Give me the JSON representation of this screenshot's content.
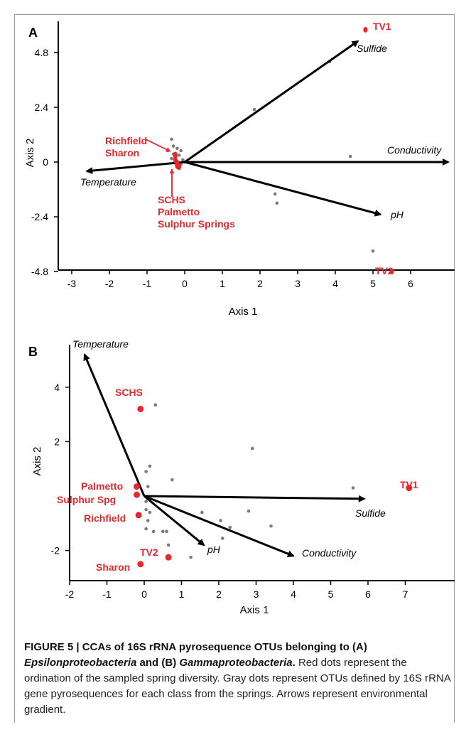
{
  "chart_data": [
    {
      "panel_label": "A",
      "type": "scatter",
      "xlabel": "Axis 1",
      "ylabel": "Axis 2",
      "xticks": [
        "-3",
        "-2",
        "-1",
        "0",
        "1",
        "2",
        "3",
        "4",
        "5",
        "6"
      ],
      "yticks": [
        "4.8",
        "2.4",
        "0",
        "-2.4",
        "-4.8"
      ],
      "xlim": [
        -3,
        7
      ],
      "ylim": [
        -5,
        6
      ],
      "vectors": [
        {
          "name": "Sulfide",
          "x": 4.6,
          "y": 5.3
        },
        {
          "name": "Conductivity",
          "x": 7.0,
          "y": 0.0
        },
        {
          "name": "pH",
          "x": 5.2,
          "y": -2.3
        },
        {
          "name": "Temperature",
          "x": -2.6,
          "y": -0.4
        }
      ],
      "sites": [
        {
          "name": "TV1",
          "x": 4.8,
          "y": 5.8
        },
        {
          "name": "TV2",
          "x": 5.5,
          "y": -4.8
        },
        {
          "name": "Richfield",
          "x": -0.25,
          "y": 0.3
        },
        {
          "name": "Sharon",
          "x": -0.25,
          "y": 0.1
        },
        {
          "name": "SCHS",
          "x": -0.2,
          "y": -0.05
        },
        {
          "name": "Palmetto",
          "x": -0.2,
          "y": -0.15
        },
        {
          "name": "Sulphur Springs",
          "x": -0.15,
          "y": -0.2
        }
      ],
      "site_labels": [
        {
          "lines": [
            "Richfield",
            "Sharon"
          ]
        },
        {
          "lines": [
            "SCHS",
            "Palmetto",
            "Sulphur Springs"
          ]
        },
        {
          "lines": [
            "TV1"
          ]
        },
        {
          "lines": [
            "TV2"
          ]
        }
      ],
      "otus": [
        {
          "x": 3.85,
          "y": 4.4
        },
        {
          "x": 1.85,
          "y": 2.3
        },
        {
          "x": 4.4,
          "y": 0.25
        },
        {
          "x": 2.4,
          "y": -1.4
        },
        {
          "x": 2.45,
          "y": -1.8
        },
        {
          "x": 5.0,
          "y": -3.9
        },
        {
          "x": -0.35,
          "y": 1.0
        },
        {
          "x": -0.3,
          "y": 0.7
        },
        {
          "x": -0.2,
          "y": 0.6
        },
        {
          "x": -0.45,
          "y": 0.5
        },
        {
          "x": -0.1,
          "y": 0.5
        },
        {
          "x": -0.3,
          "y": 0.35
        },
        {
          "x": -0.15,
          "y": 0.3
        },
        {
          "x": -0.05,
          "y": 0.1
        },
        {
          "x": -0.35,
          "y": 0.15
        },
        {
          "x": -0.1,
          "y": -0.1
        },
        {
          "x": 0.0,
          "y": 0.0
        },
        {
          "x": -0.25,
          "y": -0.05
        }
      ]
    },
    {
      "panel_label": "B",
      "type": "scatter",
      "xlabel": "Axis 1",
      "ylabel": "Axis 2",
      "xticks": [
        "-2",
        "-1",
        "0",
        "1",
        "2",
        "3",
        "4",
        "5",
        "6",
        "7"
      ],
      "yticks": [
        "4",
        "2",
        "-2"
      ],
      "xlim": [
        -2,
        8
      ],
      "ylim": [
        -3,
        5.5
      ],
      "vectors": [
        {
          "name": "Temperature",
          "x": -1.6,
          "y": 5.2
        },
        {
          "name": "Sulfide",
          "x": 5.9,
          "y": -0.1
        },
        {
          "name": "pH",
          "x": 1.6,
          "y": -1.8
        },
        {
          "name": "Conductivity",
          "x": 4.0,
          "y": -2.2
        }
      ],
      "sites": [
        {
          "name": "SCHS",
          "x": -0.1,
          "y": 3.2
        },
        {
          "name": "TV1",
          "x": 7.1,
          "y": 0.3
        },
        {
          "name": "Palmetto",
          "x": -0.2,
          "y": 0.35
        },
        {
          "name": "Sulphur Spg",
          "x": -0.2,
          "y": 0.05
        },
        {
          "name": "Richfield",
          "x": -0.15,
          "y": -0.7
        },
        {
          "name": "TV2",
          "x": 0.65,
          "y": -2.25
        },
        {
          "name": "Sharon",
          "x": -0.1,
          "y": -2.5
        }
      ],
      "otus": [
        {
          "x": 0.3,
          "y": 3.35
        },
        {
          "x": 2.9,
          "y": 1.75
        },
        {
          "x": 5.6,
          "y": 0.3
        },
        {
          "x": 0.15,
          "y": 1.1
        },
        {
          "x": 0.05,
          "y": 0.9
        },
        {
          "x": 0.75,
          "y": 0.6
        },
        {
          "x": 0.1,
          "y": 0.35
        },
        {
          "x": 0.05,
          "y": -0.2
        },
        {
          "x": 0.05,
          "y": -0.5
        },
        {
          "x": 0.15,
          "y": -0.6
        },
        {
          "x": 0.1,
          "y": -0.9
        },
        {
          "x": 0.05,
          "y": -1.2
        },
        {
          "x": 0.25,
          "y": -1.3
        },
        {
          "x": 0.5,
          "y": -1.3
        },
        {
          "x": 0.65,
          "y": -1.8
        },
        {
          "x": 1.25,
          "y": -2.25
        },
        {
          "x": 1.55,
          "y": -0.6
        },
        {
          "x": 2.05,
          "y": -0.9
        },
        {
          "x": 2.3,
          "y": -1.15
        },
        {
          "x": 2.8,
          "y": -0.55
        },
        {
          "x": 3.4,
          "y": -1.1
        },
        {
          "x": 2.1,
          "y": -1.55
        },
        {
          "x": 0.6,
          "y": -1.3
        }
      ]
    }
  ],
  "caption": {
    "bold_lead": "FIGURE 5 | CCAs of 16S rRNA pyrosequence OTUs belonging to (A) ",
    "bold_italic_1": "Epsilonproteobacteria",
    "bold_mid": " and (B) ",
    "bold_italic_2": "Gammaproteobacteria",
    "bold_end": ".",
    "text": " Red dots represent the ordination of the sampled spring diversity. Gray dots represent OTUs defined by 16S rRNA gene pyrosequences for each class from the springs. Arrows represent environmental gradient."
  },
  "colors": {
    "site": "#e8262b",
    "otu": "#7a7a7a",
    "vector": "#000000"
  }
}
